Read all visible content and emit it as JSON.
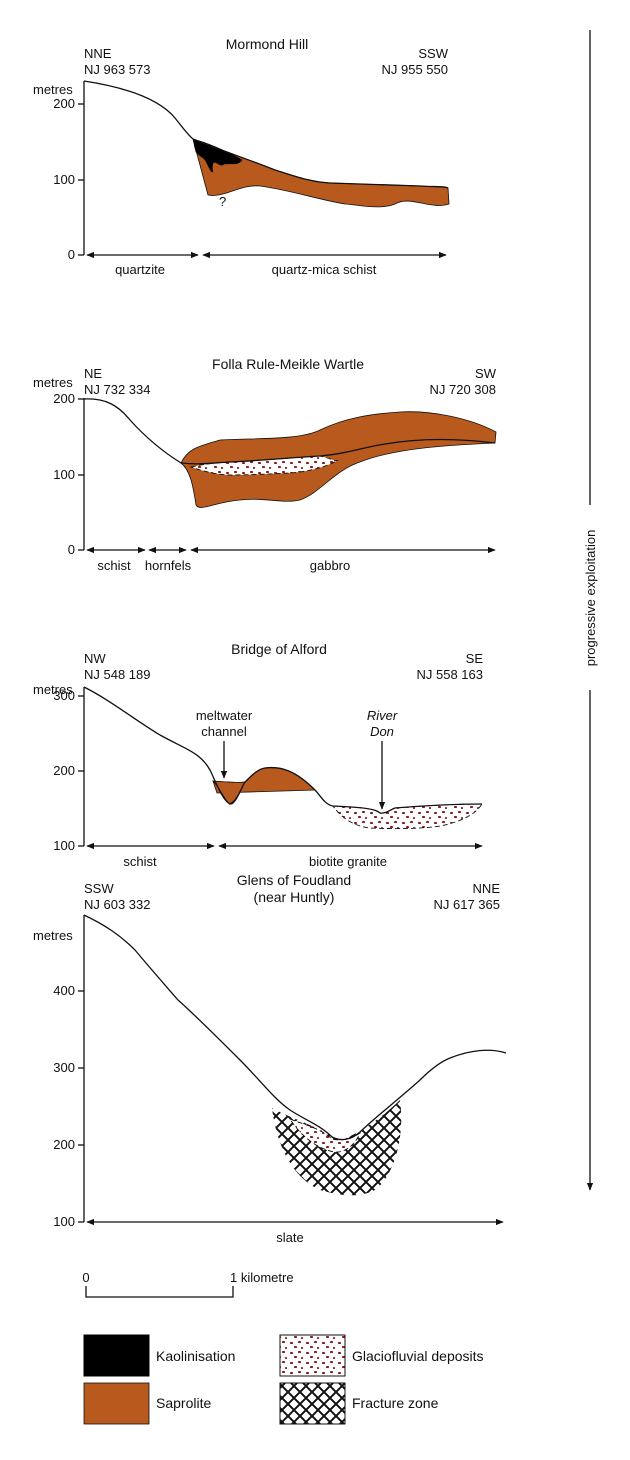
{
  "legend": {
    "kaolinisation": "Kaolinisation",
    "saprolite": "Saprolite",
    "glaciofluvial": "Glaciofluvial deposits",
    "fracture": "Fracture zone"
  },
  "progressive_label": "progressive exploitation",
  "scale": {
    "start": "0",
    "end": "1 kilometre"
  },
  "colors": {
    "saprolite": "#b85a1e",
    "kaolinisation": "#000000",
    "glacio_dots": "#8b1a1a"
  },
  "sections": [
    {
      "title": "Mormond Hill",
      "left_dir": "NNE",
      "left_grid": "NJ 963 573",
      "right_dir": "SSW",
      "right_grid": "NJ 955 550",
      "unit": "metres",
      "ticks": [
        "200",
        "100",
        "0"
      ],
      "rocks": [
        "quartzite",
        "quartz-mica schist"
      ],
      "annotations": [
        "?"
      ]
    },
    {
      "title": "Folla Rule-Meikle Wartle",
      "left_dir": "NE",
      "left_grid": "NJ 732 334",
      "right_dir": "SW",
      "right_grid": "NJ 720 308",
      "unit": "metres",
      "ticks": [
        "200",
        "100",
        "0"
      ],
      "rocks": [
        "schist",
        "hornfels",
        "gabbro"
      ]
    },
    {
      "title": "Bridge of Alford",
      "left_dir": "NW",
      "left_grid": "NJ 548 189",
      "right_dir": "SE",
      "right_grid": "NJ 558 163",
      "unit": "metres",
      "ticks": [
        "300",
        "200",
        "100"
      ],
      "rocks": [
        "schist",
        "biotite granite"
      ],
      "annotations": [
        "meltwater",
        "channel",
        "River",
        "Don"
      ]
    },
    {
      "title": "Glens of Foudland",
      "subtitle": "(near Huntly)",
      "left_dir": "SSW",
      "left_grid": "NJ 603 332",
      "right_dir": "NNE",
      "right_grid": "NJ 617 365",
      "unit": "metres",
      "ticks": [
        "400",
        "300",
        "200",
        "100"
      ],
      "rocks": [
        "slate"
      ]
    }
  ]
}
